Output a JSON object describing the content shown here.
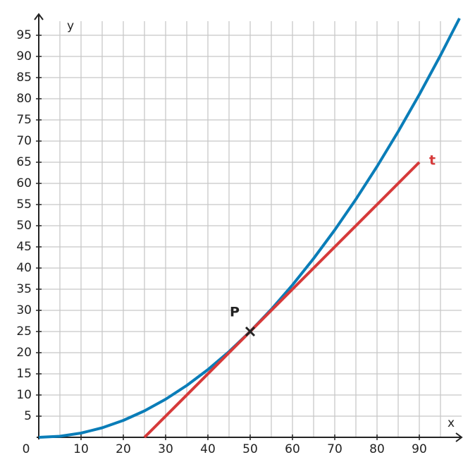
{
  "chart_data": {
    "type": "line",
    "xlabel": "x",
    "ylabel": "y",
    "xlim": [
      0,
      100
    ],
    "ylim": [
      0,
      100
    ],
    "xticks": [
      0,
      10,
      20,
      30,
      40,
      50,
      60,
      70,
      80,
      90
    ],
    "yticks": [
      5,
      10,
      15,
      20,
      25,
      30,
      35,
      40,
      45,
      50,
      55,
      60,
      65,
      70,
      75,
      80,
      85,
      90,
      95
    ],
    "grid": true,
    "grid_step": 5,
    "series": [
      {
        "color": "#0a7db8",
        "x": [
          0,
          5,
          10,
          15,
          20,
          25,
          30,
          35,
          40,
          45,
          50,
          55,
          60,
          65,
          70,
          75,
          80,
          85,
          90,
          95,
          99.5
        ],
        "values": [
          0,
          0.25,
          1,
          2.25,
          4,
          6.25,
          9,
          12.25,
          16,
          20.25,
          25,
          30.25,
          36,
          42.25,
          49,
          56.25,
          64,
          72.25,
          81,
          90.25,
          99
        ]
      },
      {
        "name": "t",
        "color": "#d63a3a",
        "x": [
          25,
          90
        ],
        "values": [
          0,
          65
        ]
      }
    ],
    "points": [
      {
        "label": "P",
        "x": 50,
        "y": 25
      }
    ]
  }
}
